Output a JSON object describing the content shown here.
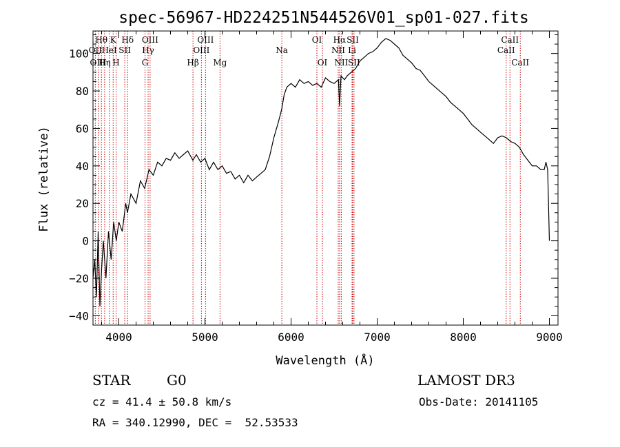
{
  "chart_data": {
    "type": "line",
    "title": "spec-56967-HD224251N544526V01_sp01-027.fits",
    "xlabel": "Wavelength (Å)",
    "ylabel": "Flux (relative)",
    "xlim": [
      3700,
      9100
    ],
    "ylim": [
      -45,
      112
    ],
    "x_ticks": [
      4000,
      5000,
      6000,
      7000,
      8000,
      9000
    ],
    "x_tick_labels": [
      "4000",
      "5000",
      "6000",
      "7000",
      "8000",
      "9000"
    ],
    "y_ticks": [
      -40,
      -20,
      0,
      20,
      40,
      60,
      80,
      100
    ],
    "y_tick_labels": [
      "−40",
      "−20",
      "0",
      "20",
      "40",
      "60",
      "80",
      "100"
    ],
    "series": [
      {
        "name": "spectrum",
        "x": [
          3700,
          3720,
          3740,
          3760,
          3780,
          3800,
          3820,
          3850,
          3880,
          3910,
          3940,
          3970,
          4000,
          4040,
          4080,
          4100,
          4140,
          4200,
          4250,
          4300,
          4350,
          4400,
          4450,
          4500,
          4550,
          4600,
          4650,
          4700,
          4750,
          4800,
          4860,
          4900,
          4950,
          5000,
          5050,
          5100,
          5150,
          5200,
          5250,
          5300,
          5350,
          5400,
          5450,
          5500,
          5550,
          5600,
          5650,
          5700,
          5750,
          5800,
          5850,
          5890,
          5920,
          5950,
          6000,
          6050,
          6100,
          6150,
          6200,
          6250,
          6300,
          6350,
          6400,
          6450,
          6500,
          6550,
          6563,
          6580,
          6620,
          6650,
          6700,
          6750,
          6800,
          6850,
          6900,
          6950,
          7000,
          7050,
          7100,
          7150,
          7200,
          7250,
          7300,
          7350,
          7400,
          7450,
          7500,
          7550,
          7600,
          7650,
          7700,
          7750,
          7800,
          7850,
          7900,
          7950,
          8000,
          8050,
          8100,
          8150,
          8200,
          8250,
          8300,
          8350,
          8400,
          8450,
          8500,
          8550,
          8600,
          8650,
          8700,
          8750,
          8800,
          8850,
          8900,
          8940,
          8960,
          8980,
          9000
        ],
        "y": [
          -20,
          -10,
          -30,
          5,
          -35,
          -15,
          0,
          -20,
          5,
          -10,
          10,
          0,
          10,
          5,
          20,
          15,
          25,
          20,
          32,
          28,
          38,
          35,
          42,
          40,
          44,
          43,
          47,
          44,
          46,
          48,
          43,
          46,
          42,
          44,
          38,
          42,
          38,
          40,
          36,
          37,
          33,
          35,
          31,
          35,
          32,
          34,
          36,
          38,
          45,
          55,
          63,
          70,
          78,
          82,
          84,
          82,
          86,
          84,
          85,
          83,
          84,
          82,
          87,
          85,
          84,
          86,
          72,
          88,
          86,
          88,
          90,
          92,
          96,
          98,
          100,
          101,
          103,
          106,
          108,
          107,
          105,
          103,
          99,
          97,
          95,
          92,
          91,
          88,
          85,
          83,
          81,
          79,
          77,
          74,
          72,
          70,
          68,
          65,
          62,
          60,
          58,
          56,
          54,
          52,
          55,
          56,
          55,
          53,
          52,
          50,
          46,
          43,
          40,
          40,
          38,
          38,
          42,
          38,
          0
        ]
      }
    ],
    "line_labels": [
      {
        "text": "Hθ",
        "x": 3798,
        "row": 1
      },
      {
        "text": "OII",
        "x": 3727,
        "row": 2
      },
      {
        "text": "OIII",
        "x": 3760,
        "row": 3
      },
      {
        "text": "K",
        "x": 3934,
        "row": 1
      },
      {
        "text": "H",
        "x": 3968,
        "row": 3
      },
      {
        "text": "HeI",
        "x": 3889,
        "row": 2
      },
      {
        "text": "Hη",
        "x": 3835,
        "row": 3
      },
      {
        "text": "SII",
        "x": 4069,
        "row": 2
      },
      {
        "text": "Hδ",
        "x": 4102,
        "row": 1
      },
      {
        "text": "OIII",
        "x": 4363,
        "row": 1
      },
      {
        "text": "Hγ",
        "x": 4340,
        "row": 2
      },
      {
        "text": "G",
        "x": 4304,
        "row": 3
      },
      {
        "text": "Hβ",
        "x": 4861,
        "row": 3
      },
      {
        "text": "OIII",
        "x": 5007,
        "row": 1
      },
      {
        "text": "OIII",
        "x": 4959,
        "row": 2
      },
      {
        "text": "Mg",
        "x": 5175,
        "row": 3
      },
      {
        "text": "Na",
        "x": 5893,
        "row": 2
      },
      {
        "text": "OI",
        "x": 6300,
        "row": 1
      },
      {
        "text": "OI",
        "x": 6364,
        "row": 3
      },
      {
        "text": "Hα",
        "x": 6563,
        "row": 1
      },
      {
        "text": "NII",
        "x": 6548,
        "row": 2
      },
      {
        "text": "NII",
        "x": 6583,
        "row": 3
      },
      {
        "text": "SII",
        "x": 6716,
        "row": 1
      },
      {
        "text": "Li",
        "x": 6708,
        "row": 2
      },
      {
        "text": "SII",
        "x": 6731,
        "row": 3
      },
      {
        "text": "CaII",
        "x": 8542,
        "row": 1
      },
      {
        "text": "CaII",
        "x": 8498,
        "row": 2
      },
      {
        "text": "CaII",
        "x": 8662,
        "row": 3
      }
    ],
    "line_marker_color": "#cc0000",
    "line_color": "#000000"
  },
  "info": {
    "object_type": "STAR",
    "subclass": "G0",
    "survey": "LAMOST DR3",
    "redshift": "cz = 41.4 ± 50.8 km/s",
    "obs_date": "Obs-Date: 20141105",
    "coords": "RA = 340.12990, DEC =  52.53533"
  }
}
